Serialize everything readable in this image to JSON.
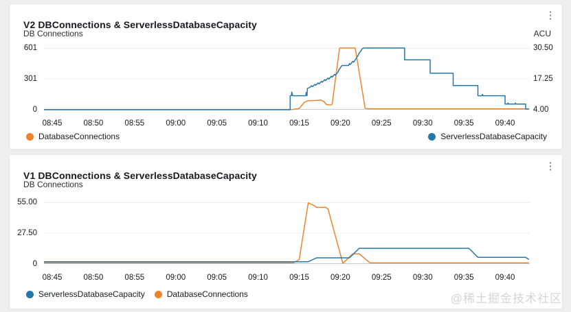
{
  "watermark": "@稀土掘金技术社区",
  "icons": {
    "panel_menu": "⋮"
  },
  "colors": {
    "blue": "#2577a9",
    "orange": "#ec842d",
    "grid": "#ececec",
    "baseline": "#c6cbd0"
  },
  "chart_data": [
    {
      "type": "line",
      "title": "V2 DBConnections & ServerlessDatabaseCapacity",
      "ylabel_left": "DB Connections",
      "ylabel_right": "ACU",
      "yticks_left": [
        "601",
        "301",
        "0"
      ],
      "yticks_right": [
        "30.50",
        "17.25",
        "4.00"
      ],
      "x_tick_labels": [
        "08:45",
        "08:50",
        "08:55",
        "09:00",
        "09:05",
        "09:10",
        "09:15",
        "09:20",
        "09:25",
        "09:30",
        "09:35",
        "09:40"
      ],
      "x_tick_step_minutes": 5,
      "x_range_minutes": [
        -1,
        58
      ],
      "grid": true,
      "legend_layout": "split",
      "legend": [
        {
          "name": "DatabaseConnections",
          "color": "#ec842d"
        },
        {
          "name": "ServerlessDatabaseCapacity",
          "color": "#2577a9"
        }
      ],
      "series": [
        {
          "name": "DatabaseConnections",
          "color": "#ec842d",
          "axis": "left",
          "y_range": [
            0,
            601
          ],
          "points": [
            [
              -1,
              3
            ],
            [
              29.2,
              3
            ],
            [
              30,
              12
            ],
            [
              30.6,
              70
            ],
            [
              31,
              87
            ],
            [
              32,
              90
            ],
            [
              32.6,
              93
            ],
            [
              33,
              80
            ],
            [
              33.3,
              50
            ],
            [
              33.8,
              46
            ],
            [
              34,
              55
            ],
            [
              34.9,
              601
            ],
            [
              36.8,
              601
            ],
            [
              38,
              14
            ],
            [
              38.4,
              9
            ],
            [
              57.9,
              9
            ]
          ]
        },
        {
          "name": "ServerlessDatabaseCapacity",
          "color": "#2577a9",
          "axis": "right",
          "y_range": [
            4,
            30.5
          ],
          "points": [
            [
              -1,
              4
            ],
            [
              28.9,
              4
            ],
            [
              28.9,
              10
            ],
            [
              29.05,
              10
            ],
            [
              29.1,
              11.6
            ],
            [
              29.2,
              10
            ],
            [
              30.8,
              10
            ],
            [
              30.85,
              11.4
            ],
            [
              30.95,
              10
            ],
            [
              31,
              13.2
            ],
            [
              31.3,
              13.6
            ],
            [
              31.5,
              14.3
            ],
            [
              31.6,
              13.9
            ],
            [
              31.9,
              14.9
            ],
            [
              32,
              14.5
            ],
            [
              32.3,
              15.5
            ],
            [
              32.4,
              15.1
            ],
            [
              32.7,
              16.2
            ],
            [
              32.8,
              15.8
            ],
            [
              33.1,
              16.9
            ],
            [
              33.2,
              16.5
            ],
            [
              33.5,
              17.6
            ],
            [
              33.6,
              17.2
            ],
            [
              33.9,
              18.4
            ],
            [
              34,
              18
            ],
            [
              34.3,
              19.2
            ],
            [
              34.4,
              18.8
            ],
            [
              34.7,
              20.1
            ],
            [
              34.8,
              21
            ],
            [
              35,
              22
            ],
            [
              35.1,
              22.6
            ],
            [
              35.2,
              23
            ],
            [
              36,
              23
            ],
            [
              36.1,
              23.8
            ],
            [
              36.2,
              23.4
            ],
            [
              36.5,
              24.8
            ],
            [
              36.6,
              24.4
            ],
            [
              36.9,
              25.9
            ],
            [
              37,
              26.5
            ],
            [
              37.2,
              27.6
            ],
            [
              37.3,
              28.4
            ],
            [
              37.5,
              29.3
            ],
            [
              37.6,
              30
            ],
            [
              37.8,
              30.5
            ],
            [
              42.8,
              30.5
            ],
            [
              42.8,
              25.4
            ],
            [
              45.9,
              25.4
            ],
            [
              45.9,
              19.7
            ],
            [
              48.7,
              19.7
            ],
            [
              48.7,
              14.4
            ],
            [
              51.7,
              14.4
            ],
            [
              51.7,
              10
            ],
            [
              52.2,
              10
            ],
            [
              52.25,
              10.6
            ],
            [
              52.35,
              10
            ],
            [
              55,
              10
            ],
            [
              55,
              6.4
            ],
            [
              55.3,
              6.4
            ],
            [
              55.35,
              6.9
            ],
            [
              55.45,
              6.4
            ],
            [
              56.2,
              6.4
            ],
            [
              56.25,
              6.9
            ],
            [
              56.35,
              6.4
            ],
            [
              57.5,
              6.4
            ],
            [
              57.5,
              4.3
            ],
            [
              57.9,
              4.3
            ]
          ]
        }
      ]
    },
    {
      "type": "line",
      "title": "V1 DBConnections & ServerlessDatabaseCapacity",
      "ylabel_left": "DB Connections",
      "yticks_left": [
        "55.00",
        "27.50",
        "0"
      ],
      "x_tick_labels": [
        "08:45",
        "08:50",
        "08:55",
        "09:00",
        "09:05",
        "09:10",
        "09:15",
        "09:20",
        "09:25",
        "09:30",
        "09:35",
        "09:40"
      ],
      "x_tick_step_minutes": 5,
      "x_range_minutes": [
        -1,
        58
      ],
      "grid": true,
      "legend_layout": "left",
      "legend": [
        {
          "name": "ServerlessDatabaseCapacity",
          "color": "#2577a9"
        },
        {
          "name": "DatabaseConnections",
          "color": "#ec842d"
        }
      ],
      "series": [
        {
          "name": "DatabaseConnections",
          "color": "#ec842d",
          "axis": "left",
          "y_range": [
            0,
            55
          ],
          "points": [
            [
              -1,
              1
            ],
            [
              29.3,
              1
            ],
            [
              30,
              4
            ],
            [
              31.1,
              54.5
            ],
            [
              31.7,
              52.5
            ],
            [
              32.1,
              50.5
            ],
            [
              33.2,
              50.5
            ],
            [
              33.5,
              49
            ],
            [
              35.3,
              0.6
            ],
            [
              36.5,
              9
            ],
            [
              37.3,
              9
            ],
            [
              38.6,
              1
            ],
            [
              57.9,
              1
            ]
          ]
        },
        {
          "name": "ServerlessDatabaseCapacity",
          "color": "#2577a9",
          "axis": "left",
          "y_range": [
            0,
            55
          ],
          "points": [
            [
              -1,
              2
            ],
            [
              31.1,
              2
            ],
            [
              32.1,
              5.5
            ],
            [
              36.1,
              5.5
            ],
            [
              37.3,
              14
            ],
            [
              50.6,
              14
            ],
            [
              51.7,
              6
            ],
            [
              57.5,
              6
            ],
            [
              57.9,
              4
            ]
          ]
        }
      ]
    }
  ]
}
